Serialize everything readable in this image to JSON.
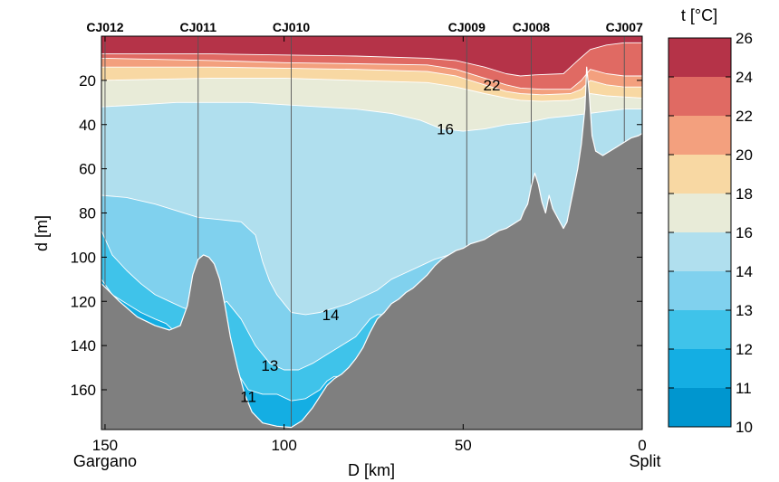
{
  "chart_data": {
    "type": "contour-section",
    "variable_label": "t [°C]",
    "xlabel": "D [km]",
    "ylabel": "d [m]",
    "x_ticks": [
      150,
      100,
      50,
      0
    ],
    "y_ticks": [
      20,
      40,
      60,
      80,
      100,
      120,
      140,
      160
    ],
    "xlim": [
      151,
      0
    ],
    "ylim": [
      0,
      178
    ],
    "endpoints": [
      {
        "name": "Gargano",
        "km": 150
      },
      {
        "name": "Split",
        "km": 0
      }
    ],
    "stations": [
      {
        "name": "CJ012",
        "km": 150
      },
      {
        "name": "CJ011",
        "km": 124
      },
      {
        "name": "CJ010",
        "km": 98
      },
      {
        "name": "CJ009",
        "km": 49
      },
      {
        "name": "CJ008",
        "km": 31
      },
      {
        "name": "CJ007",
        "km": 5
      }
    ],
    "colorbar": {
      "ticks": [
        10,
        11,
        12,
        13,
        14,
        16,
        18,
        20,
        22,
        24,
        26
      ],
      "colors": [
        "#0096cf",
        "#14aee3",
        "#3fc3ea",
        "#80d1ee",
        "#b0dfee",
        "#e8ebd8",
        "#f8d8a3",
        "#f3a07e",
        "#e06a63",
        "#b53348"
      ]
    },
    "contour_labels": [
      {
        "text": "22",
        "km": 42,
        "depth": 22
      },
      {
        "text": "16",
        "km": 55,
        "depth": 42
      },
      {
        "text": "14",
        "km": 87,
        "depth": 126
      },
      {
        "text": "13",
        "km": 104,
        "depth": 149
      },
      {
        "text": "11",
        "km": 110,
        "depth": 163
      }
    ],
    "bathymetry": [
      [
        151,
        112
      ],
      [
        146,
        120
      ],
      [
        141,
        127
      ],
      [
        136,
        131
      ],
      [
        132,
        133
      ],
      [
        129,
        131
      ],
      [
        127,
        122
      ],
      [
        125.5,
        108
      ],
      [
        124,
        101
      ],
      [
        122.5,
        99
      ],
      [
        121,
        100
      ],
      [
        119.5,
        103
      ],
      [
        118,
        110
      ],
      [
        116.5,
        122
      ],
      [
        115,
        136
      ],
      [
        113,
        150
      ],
      [
        111,
        162
      ],
      [
        109,
        170
      ],
      [
        106,
        175
      ],
      [
        102,
        176.5
      ],
      [
        98,
        177
      ],
      [
        95,
        174
      ],
      [
        92,
        168
      ],
      [
        90,
        163
      ],
      [
        88,
        158
      ],
      [
        86,
        155
      ],
      [
        84,
        153
      ],
      [
        82,
        150
      ],
      [
        80,
        146
      ],
      [
        78,
        141
      ],
      [
        76,
        134
      ],
      [
        74,
        128
      ],
      [
        72,
        125
      ],
      [
        70,
        121
      ],
      [
        68,
        119
      ],
      [
        66,
        116
      ],
      [
        64,
        114
      ],
      [
        62,
        111
      ],
      [
        60,
        108
      ],
      [
        58,
        104
      ],
      [
        56,
        101
      ],
      [
        54,
        99
      ],
      [
        52,
        97
      ],
      [
        50,
        96
      ],
      [
        48,
        94
      ],
      [
        46,
        93
      ],
      [
        44,
        92
      ],
      [
        42,
        90
      ],
      [
        40,
        88
      ],
      [
        38,
        87
      ],
      [
        36,
        85
      ],
      [
        34,
        83
      ],
      [
        33,
        79
      ],
      [
        32,
        76
      ],
      [
        31,
        68
      ],
      [
        30,
        62
      ],
      [
        29,
        67
      ],
      [
        28,
        75
      ],
      [
        27,
        80
      ],
      [
        26,
        72
      ],
      [
        25,
        78
      ],
      [
        24,
        81
      ],
      [
        22,
        87
      ],
      [
        21,
        84
      ],
      [
        20,
        76
      ],
      [
        19,
        68
      ],
      [
        18,
        60
      ],
      [
        17,
        49
      ],
      [
        16,
        33
      ],
      [
        15.5,
        14
      ],
      [
        14.8,
        26
      ],
      [
        14,
        45
      ],
      [
        13,
        52
      ],
      [
        11,
        54
      ],
      [
        9,
        52
      ],
      [
        7,
        50
      ],
      [
        5,
        48
      ],
      [
        3,
        46
      ],
      [
        1,
        45
      ],
      [
        0,
        44
      ]
    ],
    "isotherms": [
      {
        "min": 24,
        "surface": 0,
        "bound": [
          [
            151,
            8
          ],
          [
            120,
            8
          ],
          [
            100,
            8.5
          ],
          [
            80,
            9
          ],
          [
            60,
            10
          ],
          [
            52,
            11
          ],
          [
            44,
            14
          ],
          [
            38,
            17
          ],
          [
            34,
            18
          ],
          [
            30,
            17.5
          ],
          [
            22,
            17
          ],
          [
            18,
            11
          ],
          [
            14.5,
            6
          ],
          [
            10,
            4
          ],
          [
            5,
            3
          ],
          [
            0,
            3
          ]
        ]
      },
      {
        "min": 22,
        "surface": 0,
        "bound": [
          [
            151,
            10
          ],
          [
            120,
            11
          ],
          [
            100,
            12
          ],
          [
            80,
            12.5
          ],
          [
            60,
            13
          ],
          [
            52,
            15
          ],
          [
            44,
            19
          ],
          [
            38,
            22
          ],
          [
            34,
            23.5
          ],
          [
            28,
            24
          ],
          [
            20,
            24
          ],
          [
            17,
            20
          ],
          [
            14.5,
            15
          ],
          [
            10,
            17
          ],
          [
            5,
            18
          ],
          [
            0,
            18
          ]
        ]
      },
      {
        "min": 20,
        "surface": 0,
        "bound": [
          [
            151,
            14
          ],
          [
            120,
            14
          ],
          [
            100,
            14.5
          ],
          [
            80,
            15
          ],
          [
            60,
            16
          ],
          [
            52,
            18
          ],
          [
            44,
            22
          ],
          [
            38,
            25
          ],
          [
            34,
            26
          ],
          [
            28,
            26.5
          ],
          [
            20,
            26
          ],
          [
            17,
            24
          ],
          [
            14.5,
            20
          ],
          [
            10,
            22
          ],
          [
            5,
            23
          ],
          [
            0,
            23
          ]
        ]
      },
      {
        "min": 18,
        "surface": 0,
        "bound": [
          [
            151,
            20
          ],
          [
            120,
            19
          ],
          [
            100,
            19
          ],
          [
            80,
            20
          ],
          [
            60,
            21
          ],
          [
            52,
            23
          ],
          [
            44,
            26
          ],
          [
            38,
            28
          ],
          [
            34,
            29
          ],
          [
            28,
            29.5
          ],
          [
            20,
            29
          ],
          [
            17,
            28
          ],
          [
            14.5,
            26
          ],
          [
            10,
            27
          ],
          [
            5,
            27.5
          ],
          [
            0,
            28
          ]
        ]
      },
      {
        "min": 16,
        "surface": 0,
        "bound": [
          [
            151,
            32
          ],
          [
            140,
            31
          ],
          [
            130,
            30
          ],
          [
            120,
            30
          ],
          [
            110,
            30
          ],
          [
            100,
            31
          ],
          [
            90,
            32
          ],
          [
            80,
            33
          ],
          [
            70,
            35
          ],
          [
            62,
            38
          ],
          [
            56,
            42
          ],
          [
            50,
            43
          ],
          [
            44,
            42
          ],
          [
            38,
            40
          ],
          [
            32,
            39
          ],
          [
            26,
            37
          ],
          [
            20,
            36
          ],
          [
            15,
            35
          ],
          [
            10,
            34
          ],
          [
            5,
            33
          ],
          [
            0,
            33
          ]
        ]
      },
      {
        "min": 14,
        "surface": 0,
        "bound": [
          [
            151,
            72
          ],
          [
            144,
            73
          ],
          [
            136,
            76
          ],
          [
            130,
            79
          ],
          [
            124,
            82
          ],
          [
            118,
            83
          ],
          [
            112,
            84
          ],
          [
            108,
            90
          ],
          [
            106,
            102
          ],
          [
            104,
            111
          ],
          [
            102,
            117
          ],
          [
            100,
            121
          ],
          [
            98,
            125
          ],
          [
            94,
            126
          ],
          [
            90,
            125
          ],
          [
            86,
            123
          ],
          [
            82,
            121
          ],
          [
            78,
            118
          ],
          [
            74,
            115
          ],
          [
            70,
            110
          ],
          [
            66,
            107
          ],
          [
            62,
            104
          ],
          [
            58,
            101
          ],
          [
            54,
            99
          ],
          [
            50,
            97
          ],
          [
            0,
            97
          ]
        ]
      },
      {
        "min": 13,
        "surface": 0,
        "bound": [
          [
            151,
            88
          ],
          [
            148,
            99
          ],
          [
            144,
            106
          ],
          [
            140,
            112
          ],
          [
            136,
            117
          ],
          [
            132,
            120
          ],
          [
            128,
            123
          ],
          [
            124,
            125
          ],
          [
            120,
            123
          ],
          [
            116,
            120
          ],
          [
            112,
            128
          ],
          [
            108,
            140
          ],
          [
            104,
            148
          ],
          [
            100,
            151
          ],
          [
            96,
            151
          ],
          [
            92,
            148
          ],
          [
            88,
            144
          ],
          [
            84,
            140
          ],
          [
            80,
            136
          ],
          [
            78,
            132
          ],
          [
            76,
            128
          ],
          [
            74,
            126
          ],
          [
            0,
            126
          ]
        ]
      },
      {
        "min": 12,
        "surface": 0,
        "bound": [
          [
            151,
            110
          ],
          [
            148,
            117
          ],
          [
            144,
            121
          ],
          [
            140,
            125
          ],
          [
            136,
            128
          ],
          [
            133,
            130
          ],
          [
            131,
            133
          ],
          [
            116,
            133
          ],
          [
            114,
            150
          ],
          [
            110,
            160
          ],
          [
            106,
            162
          ],
          [
            102,
            162
          ],
          [
            98,
            165
          ],
          [
            94,
            164
          ],
          [
            90,
            160
          ],
          [
            88,
            156
          ],
          [
            86,
            154
          ],
          [
            0,
            154
          ]
        ]
      },
      {
        "min": 11,
        "surface": 0,
        "bound": [
          [
            151,
            178
          ],
          [
            114,
            178
          ],
          [
            113,
            160
          ],
          [
            111,
            167
          ],
          [
            109,
            172
          ],
          [
            106,
            176
          ],
          [
            102,
            177
          ],
          [
            98,
            177
          ],
          [
            95,
            177
          ],
          [
            95,
            178
          ],
          [
            0,
            178
          ]
        ]
      }
    ]
  }
}
